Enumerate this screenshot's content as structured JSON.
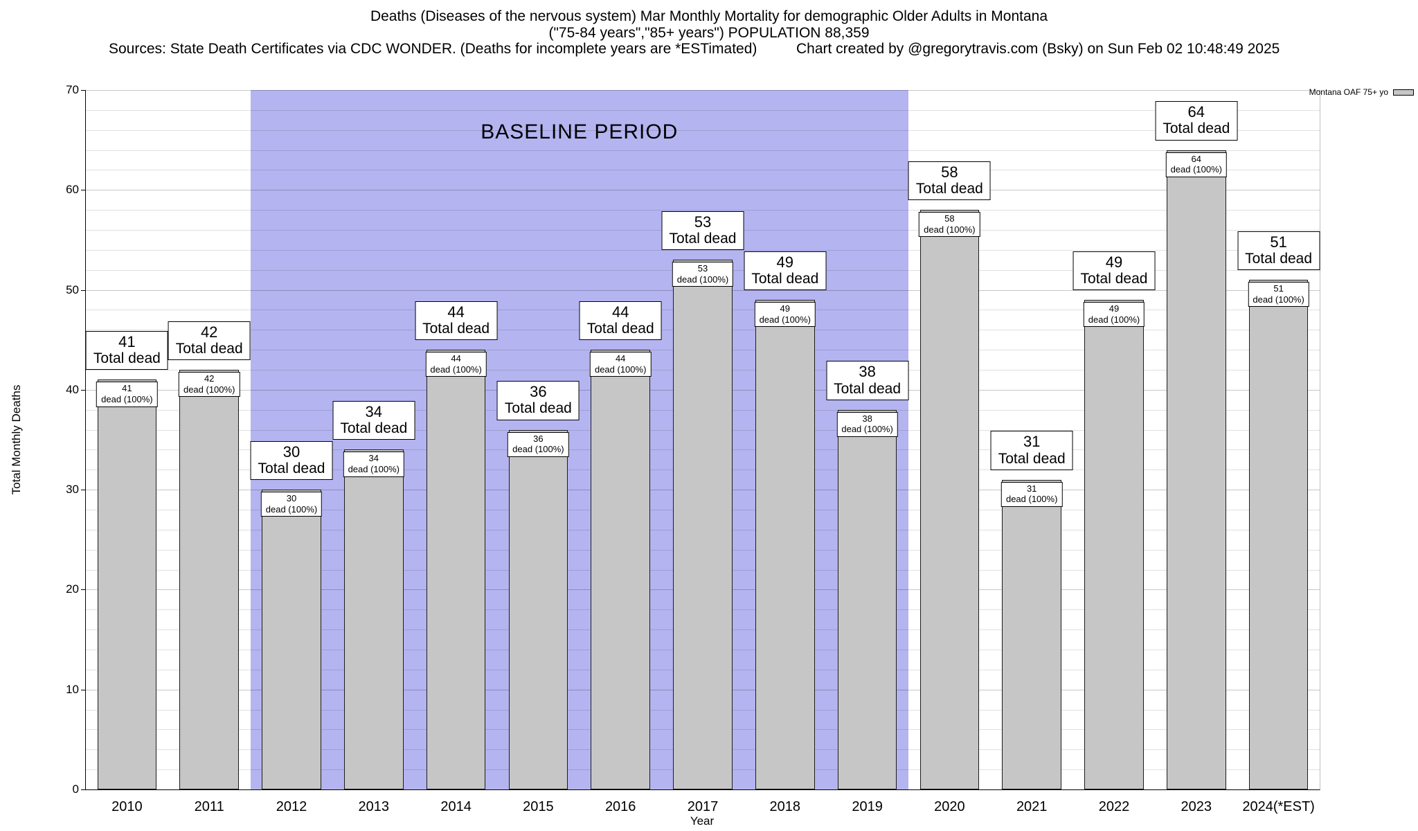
{
  "header": {
    "title_line1": "Deaths (Diseases of the nervous system) Mar Monthly Mortality for demographic Older Adults in Montana",
    "title_line2": "(\"75-84 years\",\"85+ years\") POPULATION 88,359",
    "sources": "Sources: State Death Certificates via CDC WONDER. (Deaths for incomplete years are *ESTimated)",
    "credit": "Chart created by @gregorytravis.com (Bsky) on Sun Feb 02 10:48:49 2025"
  },
  "chart_data": {
    "type": "bar",
    "title": "Deaths (Diseases of the nervous system) Mar Monthly Mortality for demographic Older Adults in Montana",
    "subtitle": "(\"75-84 years\",\"85+ years\") POPULATION 88,359",
    "categories": [
      "2010",
      "2011",
      "2012",
      "2013",
      "2014",
      "2015",
      "2016",
      "2017",
      "2018",
      "2019",
      "2020",
      "2021",
      "2022",
      "2023",
      "2024(*EST)"
    ],
    "values": [
      41,
      42,
      30,
      34,
      44,
      36,
      44,
      53,
      49,
      38,
      58,
      31,
      49,
      64,
      51
    ],
    "xlabel": "Year",
    "ylabel": "Total Monthly Deaths",
    "ylim": [
      0,
      70
    ],
    "yticks": [
      0,
      10,
      20,
      30,
      40,
      50,
      60,
      70
    ],
    "minor_grid_step": 2,
    "grid": "on",
    "bar_color": "#c6c6c6",
    "baseline_region": {
      "label": "BASELINE PERIOD",
      "start_category": "2012",
      "end_category": "2019",
      "color": "#b4b4f0"
    },
    "legend": {
      "position": "top-right",
      "label": "Montana OAF 75+ yo"
    },
    "annotations": {
      "total_label": "Total dead",
      "percent_label": "dead (100%)"
    }
  }
}
